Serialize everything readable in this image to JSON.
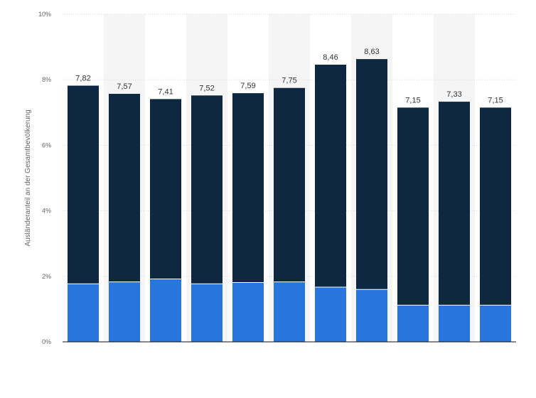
{
  "chart_data": {
    "type": "bar",
    "stacked": true,
    "ylabel": "Ausländeranteil an der Gesamtbevölkerung",
    "ylim": [
      0,
      10
    ],
    "yticks": [
      0,
      2,
      4,
      6,
      8,
      10
    ],
    "ytick_labels": [
      "0%",
      "2%",
      "4%",
      "6%",
      "8%",
      "10%"
    ],
    "grid": true,
    "alternating_column_shading": true,
    "categories": [
      "",
      "",
      "",
      "",
      "",
      "",
      "",
      "",
      "",
      "",
      ""
    ],
    "series": [
      {
        "values": [
          1.77,
          1.83,
          1.92,
          1.77,
          1.81,
          1.83,
          1.67,
          1.6,
          1.12,
          1.12,
          1.12
        ]
      },
      {
        "values": [
          6.05,
          5.74,
          5.49,
          5.75,
          5.78,
          5.92,
          6.79,
          7.03,
          6.03,
          6.21,
          6.03
        ]
      }
    ],
    "totals": [
      7.82,
      7.57,
      7.41,
      7.52,
      7.59,
      7.75,
      8.46,
      8.63,
      7.15,
      7.33,
      7.15
    ],
    "total_labels": [
      "7,82",
      "7,57",
      "7,41",
      "7,52",
      "7,59",
      "7,75",
      "8,46",
      "8,63",
      "7,15",
      "7,33",
      "7,15"
    ],
    "colors": {
      "series": [
        "#2876dd",
        "#0f2841"
      ],
      "shade": "#f5f5f5",
      "grid": "#d9d9d9",
      "axis": "#111111"
    }
  }
}
